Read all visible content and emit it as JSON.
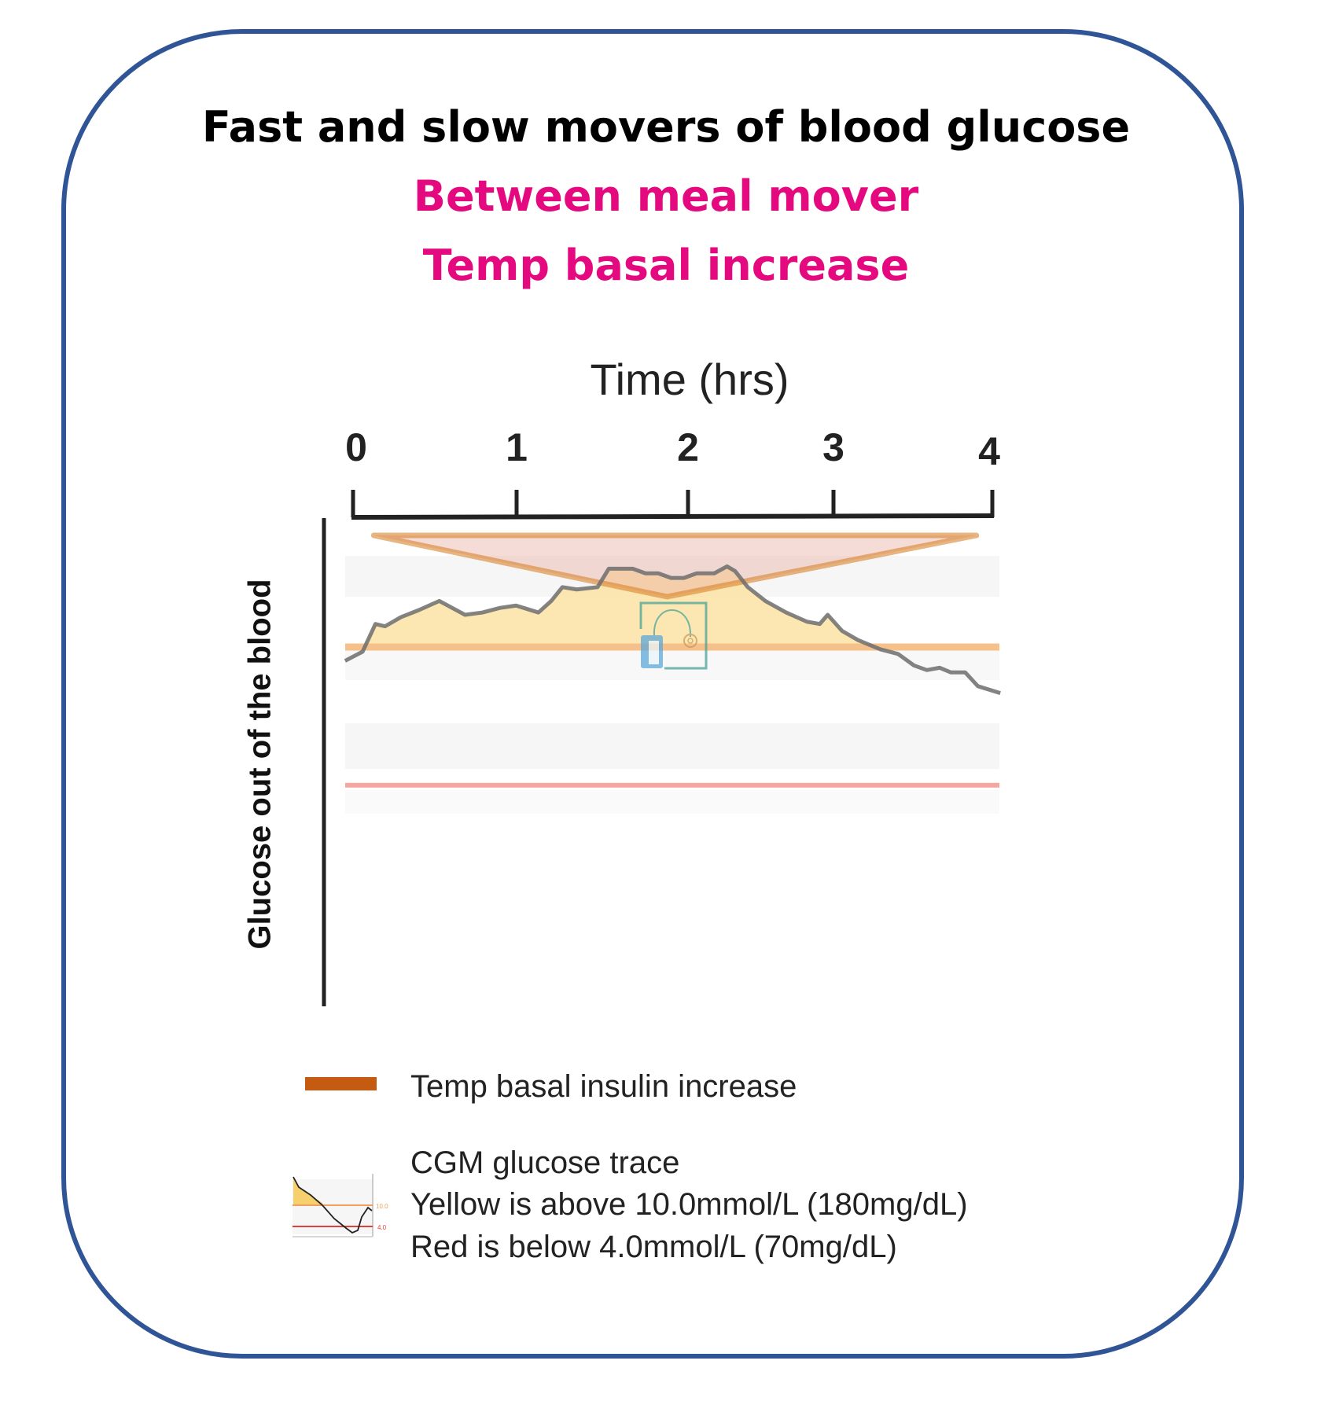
{
  "title": "Fast and slow movers of blood  glucose",
  "subtitle_1": "Between meal mover",
  "subtitle_2": "Temp basal increase",
  "colors": {
    "frame": "#2f5597",
    "subtitle": "#e5097f",
    "temp_basal": "#c55a11",
    "high_fill": "#fbe3a5",
    "high_line": "#f6c08a",
    "low_line": "#f4a7a0",
    "trace": "#777777"
  },
  "icons": [
    "insulin-pump-icon",
    "cgm-trace-thumbnail-icon"
  ],
  "chart_data": {
    "type": "line",
    "xlabel": "Time (hrs)",
    "ylabel": "Glucose out of the blood",
    "xticks": [
      "0",
      "1",
      "2",
      "3",
      "4"
    ],
    "xlim": [
      0,
      4
    ],
    "thresholds_mmol": {
      "high": 10.0,
      "low": 4.0
    },
    "temp_basal_hours": [
      0.13,
      3.9
    ],
    "series": [
      {
        "x": [
          -0.05,
          0.06,
          0.14,
          0.2,
          0.3,
          0.41,
          0.54,
          0.62,
          0.7,
          0.81,
          0.92,
          1.02,
          1.16,
          1.24,
          1.31,
          1.4,
          1.53,
          1.6,
          1.75,
          1.83,
          1.91,
          1.99,
          2.07,
          2.15,
          2.26,
          2.34,
          2.39,
          2.47,
          2.58,
          2.71,
          2.84,
          2.92,
          2.97,
          3.06,
          3.16,
          3.3,
          3.41,
          3.51,
          3.59,
          3.67,
          3.74,
          3.83,
          3.91,
          4.05
        ],
        "y": [
          9.4,
          9.8,
          11.0,
          10.9,
          11.3,
          11.6,
          12.0,
          11.7,
          11.4,
          11.5,
          11.7,
          11.8,
          11.5,
          12.0,
          12.6,
          12.5,
          12.6,
          13.4,
          13.4,
          13.2,
          13.2,
          13.0,
          13.0,
          13.2,
          13.2,
          13.5,
          13.3,
          12.6,
          12.0,
          11.5,
          11.1,
          11.0,
          11.4,
          10.7,
          10.3,
          9.9,
          9.7,
          9.2,
          9.0,
          9.1,
          8.9,
          8.9,
          8.3,
          8.0
        ]
      }
    ]
  },
  "legend": {
    "temp_basal": "Temp basal  insulin increase",
    "cgm_title": "CGM glucose trace",
    "cgm_yellow": "Yellow is above 10.0mmol/L (180mg/dL)",
    "cgm_red": "Red is below 4.0mmol/L (70mg/dL)",
    "thumb_high": "10.0",
    "thumb_low": "4.0"
  }
}
